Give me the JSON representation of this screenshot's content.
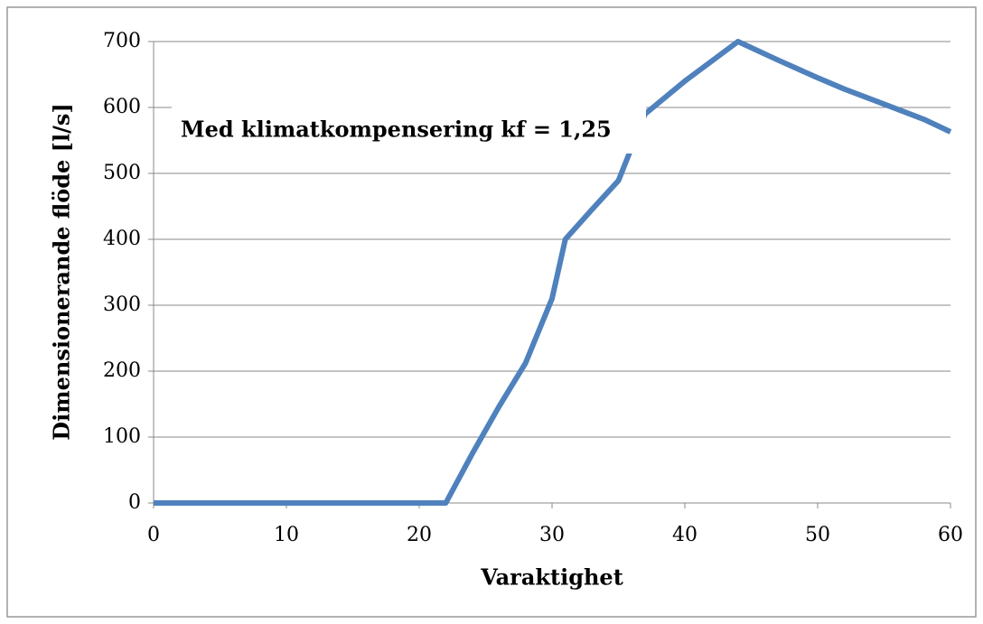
{
  "chart_data": {
    "type": "line",
    "x_label": "Varaktighet",
    "y_label": "Dimensionerande flöde [l/s]",
    "annotation": "Med klimatkompensering kf = 1,25",
    "x": [
      0,
      22,
      24,
      26,
      28,
      30,
      31,
      33,
      35,
      37,
      40,
      44,
      47,
      50,
      52,
      55,
      58,
      60
    ],
    "series": [
      {
        "name": "Med klimatkompensering kf = 1,25",
        "color": "#4f81bd",
        "values": [
          0,
          0,
          75,
          146,
          212,
          310,
          400,
          445,
          489,
          590,
          640,
          700,
          672,
          645,
          628,
          605,
          582,
          563
        ]
      }
    ],
    "xlim": [
      0,
      60
    ],
    "xticks": [
      0,
      10,
      20,
      30,
      40,
      50,
      60
    ],
    "ylim": [
      0,
      700
    ],
    "yticks": [
      0,
      100,
      200,
      300,
      400,
      500,
      600,
      700
    ],
    "grid": true
  }
}
